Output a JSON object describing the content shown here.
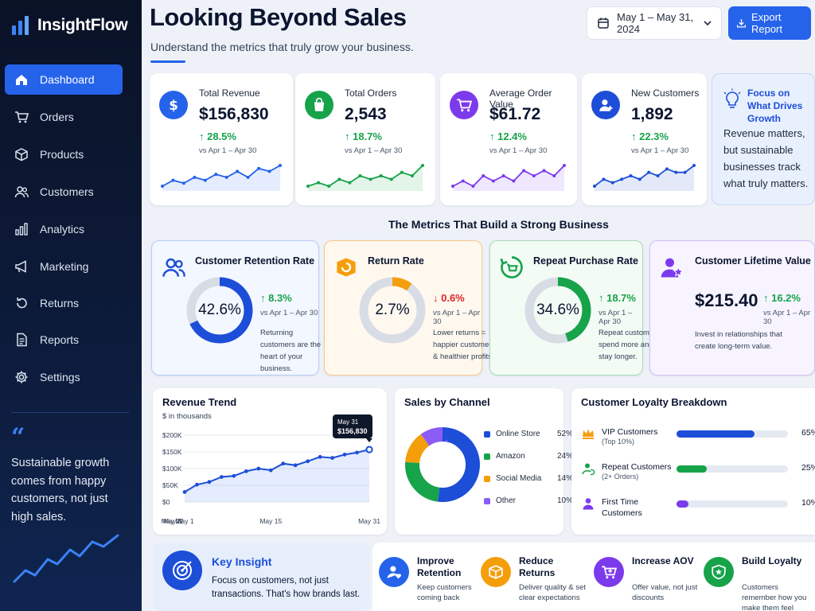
{
  "app": {
    "name": "InsightFlow"
  },
  "sidebar": {
    "items": [
      {
        "label": "Dashboard",
        "icon": "home-icon",
        "active": true
      },
      {
        "label": "Orders",
        "icon": "cart-icon"
      },
      {
        "label": "Products",
        "icon": "box-icon"
      },
      {
        "label": "Customers",
        "icon": "users-icon"
      },
      {
        "label": "Analytics",
        "icon": "bar-chart-icon"
      },
      {
        "label": "Marketing",
        "icon": "megaphone-icon"
      },
      {
        "label": "Returns",
        "icon": "returns-icon"
      },
      {
        "label": "Reports",
        "icon": "document-icon"
      },
      {
        "label": "Settings",
        "icon": "gear-icon"
      }
    ],
    "quote": {
      "mark": "“",
      "text": "Sustainable growth comes from happy customers, not just high sales."
    }
  },
  "header": {
    "title": "Looking Beyond Sales",
    "subtitle": "Understand the metrics that truly grow your business.",
    "date_range": "May 1 – May 31, 2024",
    "export_label": "Export Report"
  },
  "colors": {
    "accent": "#2563eb",
    "positive": "#16a34a",
    "negative": "#dc2626"
  },
  "kpis": [
    {
      "label": "Total Revenue",
      "value": "$156,830",
      "change": "↑ 28.5%",
      "vs": "vs Apr 1 – Apr 30",
      "color": "#2563eb",
      "icon": "dollar-icon",
      "trend": [
        3,
        5,
        4,
        6,
        5,
        7,
        6,
        8,
        6,
        9,
        8,
        10
      ]
    },
    {
      "label": "Total Orders",
      "value": "2,543",
      "change": "↑ 18.7%",
      "vs": "vs Apr 1 – Apr 30",
      "color": "#16a34a",
      "icon": "shopping-bag-icon",
      "trend": [
        3,
        4,
        3,
        5,
        4,
        6,
        5,
        6,
        5,
        7,
        6,
        9
      ]
    },
    {
      "label": "Average Order Value",
      "value": "$61.72",
      "change": "↑ 12.4%",
      "vs": "vs Apr 1 – Apr 30",
      "color": "#7c3aed",
      "icon": "cart-icon",
      "trend": [
        4,
        5,
        4,
        6,
        5,
        6,
        5,
        7,
        6,
        7,
        6,
        8
      ]
    },
    {
      "label": "New Customers",
      "value": "1,892",
      "change": "↑ 22.3%",
      "vs": "vs Apr 1 – Apr 30",
      "color": "#1d4ed8",
      "icon": "add-user-icon",
      "trend": [
        3,
        5,
        4,
        5,
        6,
        5,
        7,
        6,
        8,
        7,
        7,
        9
      ]
    }
  ],
  "focus": {
    "title": "Focus on What Drives Growth",
    "text": "Revenue matters, but sustainable businesses track what truly matters."
  },
  "section_title": "The Metrics That Build a Strong Business",
  "metrics": [
    {
      "title": "Customer Retention Rate",
      "value": "42.6%",
      "change": "↑ 8.3%",
      "direction": "up",
      "vs": "vs Apr 1 – Apr 30",
      "note": "Returning customers are the heart of your business.",
      "color": "#1d4ed8",
      "icon": "users-icon",
      "ring": 0.68
    },
    {
      "title": "Return Rate",
      "value": "2.7%",
      "change": "↓ 0.6%",
      "direction": "down",
      "vs": "vs Apr 1 – Apr 30",
      "note": "Lower returns = happier customers & healthier profits.",
      "color": "#f59e0b",
      "icon": "returns-box-icon",
      "ring": 0.1
    },
    {
      "title": "Repeat Purchase Rate",
      "value": "34.6%",
      "change": "↑ 18.7%",
      "direction": "up",
      "vs": "vs Apr 1 – Apr 30",
      "note": "Repeat customers spend more and stay longer.",
      "color": "#16a34a",
      "icon": "repeat-cart-icon",
      "ring": 0.45
    },
    {
      "title": "Customer Lifetime Value",
      "value": "$215.40",
      "change": "↑ 16.2%",
      "direction": "up",
      "vs": "vs Apr 1 – Apr 30",
      "note": "Invest in relationships that create long-term value.",
      "color": "#7c3aed",
      "icon": "user-star-icon"
    }
  ],
  "revenue_trend": {
    "title": "Revenue Trend",
    "unit_label": "$ in thousands",
    "tooltip_date": "May 31",
    "tooltip_value": "$156,830"
  },
  "sales_channel": {
    "title": "Sales by Channel",
    "channels": [
      {
        "name": "Online Store",
        "pct": "52%",
        "value": 52,
        "color": "#1d4ed8"
      },
      {
        "name": "Amazon",
        "pct": "24%",
        "value": 24,
        "color": "#16a34a"
      },
      {
        "name": "Social Media",
        "pct": "14%",
        "value": 14,
        "color": "#f59e0b"
      },
      {
        "name": "Other",
        "pct": "10%",
        "value": 10,
        "color": "#8b5cf6"
      }
    ]
  },
  "loyalty": {
    "title": "Customer Loyalty Breakdown",
    "rows": [
      {
        "name": "VIP Customers",
        "sub": "(Top 10%)",
        "pct": "65%",
        "value": 65,
        "color": "#1d4ed8",
        "icon": "crown-icon",
        "icon_color": "#f59e0b"
      },
      {
        "name": "Repeat Customers",
        "sub": "(2+ Orders)",
        "pct": "25%",
        "value": 25,
        "color": "#16a34a",
        "icon": "repeat-user-icon",
        "icon_color": "#16a34a"
      },
      {
        "name": "First Time Customers",
        "sub": "",
        "pct": "10%",
        "value": 10,
        "color": "#7c3aed",
        "icon": "user-icon",
        "icon_color": "#7c3aed"
      }
    ]
  },
  "insight": {
    "title": "Key Insight",
    "text": "Focus on customers, not just transactions. That's how brands last."
  },
  "tips": [
    {
      "title": "Improve Retention",
      "desc": "Keep customers coming back",
      "color": "#2563eb",
      "icon": "user-heart-icon"
    },
    {
      "title": "Reduce Returns",
      "desc": "Deliver quality & set clear expectations",
      "color": "#f59e0b",
      "icon": "package-icon"
    },
    {
      "title": "Increase AOV",
      "desc": "Offer value, not just discounts",
      "color": "#7c3aed",
      "icon": "cart-plus-icon"
    },
    {
      "title": "Build Loyalty",
      "desc": "Customers remember how you make them feel",
      "color": "#16a34a",
      "icon": "shield-icon"
    }
  ],
  "chart_data": [
    {
      "type": "line",
      "title": "Revenue Trend",
      "ylabel": "$ in thousands",
      "x": [
        "May 1",
        "May 3",
        "May 5",
        "May 7",
        "May 9",
        "May 11",
        "May 13",
        "May 15",
        "May 17",
        "May 19",
        "May 21",
        "May 23",
        "May 25",
        "May 27",
        "May 29",
        "May 31"
      ],
      "x_ticks": [
        "May 1",
        "May 8",
        "May 15",
        "May 22",
        "May 31"
      ],
      "y_ticks": [
        "$0",
        "$50K",
        "$100K",
        "$150K",
        "$200K"
      ],
      "values": [
        30,
        52,
        60,
        75,
        78,
        92,
        100,
        95,
        115,
        110,
        122,
        135,
        132,
        142,
        148,
        157
      ],
      "ylim": [
        0,
        200
      ],
      "grid": true,
      "annotation": {
        "label": "May 31",
        "value": "$156,830"
      }
    },
    {
      "type": "pie",
      "title": "Sales by Channel",
      "categories": [
        "Online Store",
        "Amazon",
        "Social Media",
        "Other"
      ],
      "values": [
        52,
        24,
        14,
        10
      ],
      "legend": "right"
    }
  ]
}
